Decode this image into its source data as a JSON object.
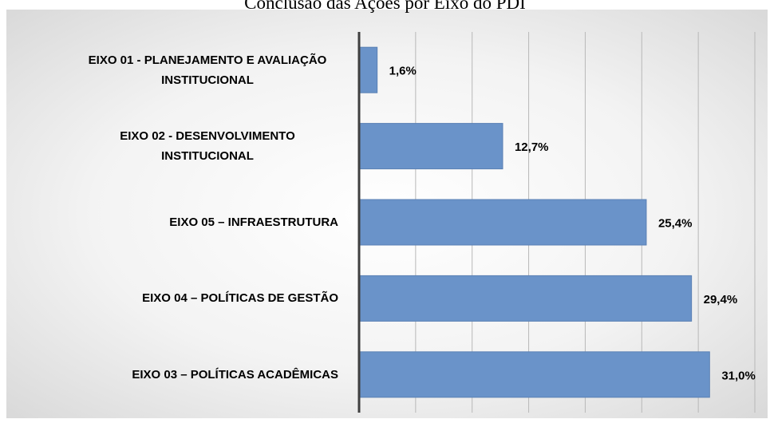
{
  "chart_data": {
    "type": "bar",
    "orientation": "horizontal",
    "title": "Conclusão das Ações por Eixo do PDI",
    "categories": [
      "EIXO 01 - PLANEJAMENTO E AVALIAÇÃO INSTITUCIONAL",
      "EIXO 02 - DESENVOLVIMENTO INSTITUCIONAL",
      "EIXO 05 – INFRAESTRUTURA",
      "EIXO 04 – POLÍTICAS DE GESTÃO",
      "EIXO 03 – POLÍTICAS ACADÊMICAS"
    ],
    "values": [
      1.6,
      12.7,
      25.4,
      29.4,
      31.0
    ],
    "value_labels": [
      "1,6%",
      "12,7%",
      "25,4%",
      "29,4%",
      "31,0%"
    ],
    "color": "#6a93c9",
    "xlim": [
      0,
      35
    ],
    "xticks": [
      0,
      5,
      10,
      15,
      20,
      25,
      30,
      35
    ],
    "grid": true
  }
}
